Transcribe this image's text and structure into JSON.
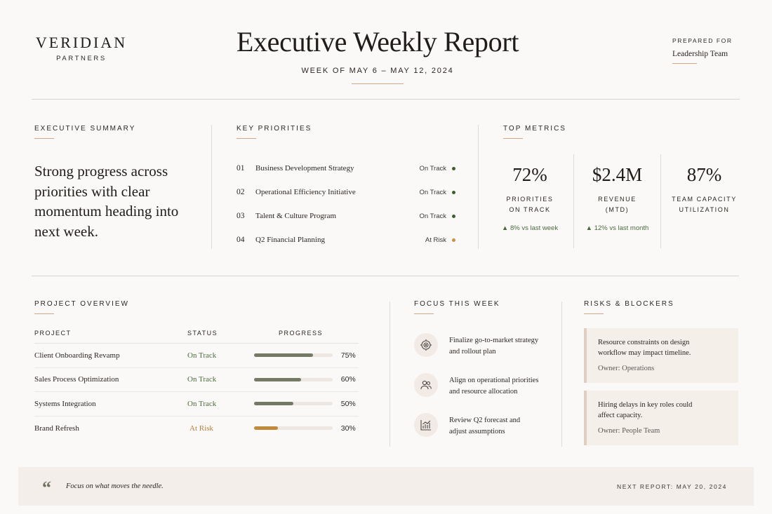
{
  "brand": {
    "name": "VERIDIAN",
    "sub": "PARTNERS"
  },
  "header": {
    "title": "Executive Weekly Report",
    "week": "WEEK OF MAY 6 – MAY 12, 2024",
    "prepared_label": "PREPARED FOR",
    "prepared_value": "Leadership Team"
  },
  "summary": {
    "label": "EXECUTIVE SUMMARY",
    "text": "Strong progress across priorities with clear momentum heading into next week."
  },
  "priorities": {
    "label": "KEY PRIORITIES",
    "items": [
      {
        "num": "01",
        "name": "Business Development Strategy",
        "status": "On Track",
        "color": "#3f5e2e"
      },
      {
        "num": "02",
        "name": "Operational Efficiency Initiative",
        "status": "On Track",
        "color": "#3f5e2e"
      },
      {
        "num": "03",
        "name": "Talent & Culture Program",
        "status": "On Track",
        "color": "#3f5e2e"
      },
      {
        "num": "04",
        "name": "Q2 Financial Planning",
        "status": "At Risk",
        "color": "#c9933f"
      }
    ]
  },
  "metrics": {
    "label": "TOP METRICS",
    "items": [
      {
        "value": "72%",
        "label1": "PRIORITIES",
        "label2": "ON TRACK",
        "delta": "▲  8% vs last week"
      },
      {
        "value": "$2.4M",
        "label1": "REVENUE",
        "label2": "(MTD)",
        "delta": "▲  12% vs last month"
      },
      {
        "value": "87%",
        "label1": "TEAM CAPACITY",
        "label2": "UTILIZATION",
        "delta": ""
      }
    ]
  },
  "projects": {
    "label": "PROJECT OVERVIEW",
    "columns": [
      "PROJECT",
      "STATUS",
      "PROGRESS"
    ],
    "rows": [
      {
        "name": "Client Onboarding Revamp",
        "status": "On Track",
        "status_color": "#4b6b3e",
        "progress": 75,
        "pct": "75%",
        "bar_color": "#747a63"
      },
      {
        "name": "Sales Process Optimization",
        "status": "On Track",
        "status_color": "#4b6b3e",
        "progress": 60,
        "pct": "60%",
        "bar_color": "#747a63"
      },
      {
        "name": "Systems Integration",
        "status": "On Track",
        "status_color": "#4b6b3e",
        "progress": 50,
        "pct": "50%",
        "bar_color": "#747a63"
      },
      {
        "name": "Brand Refresh",
        "status": "At Risk",
        "status_color": "#b5803d",
        "progress": 30,
        "pct": "30%",
        "bar_color": "#c08a3c"
      }
    ]
  },
  "focus": {
    "label": "FOCUS THIS WEEK",
    "items": [
      {
        "icon": "target-icon",
        "line1": "Finalize go-to-market strategy",
        "line2": "and rollout plan"
      },
      {
        "icon": "people-icon",
        "line1": "Align on operational priorities",
        "line2": "and resource allocation"
      },
      {
        "icon": "chart-icon",
        "line1": "Review Q2 forecast and",
        "line2": "adjust assumptions"
      }
    ]
  },
  "risks": {
    "label": "RISKS & BLOCKERS",
    "items": [
      {
        "line1": "Resource constraints on design",
        "line2": "workflow may impact timeline.",
        "owner": "Owner: Operations"
      },
      {
        "line1": "Hiring delays in key roles could",
        "line2": "affect capacity.",
        "owner": "Owner: People Team"
      }
    ]
  },
  "footer": {
    "quote": "Focus on what moves the needle.",
    "next": "NEXT REPORT: MAY 20, 2024"
  }
}
